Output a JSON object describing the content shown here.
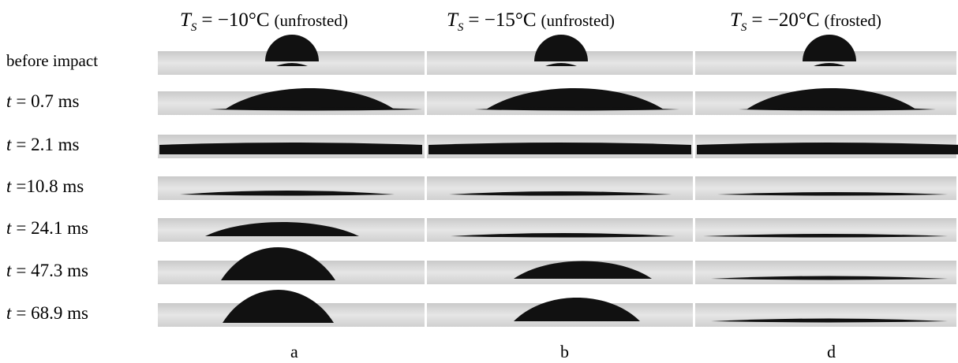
{
  "columns": [
    {
      "symbol": "T",
      "subscript": "S",
      "value": "= −10°C",
      "note": "(unfrosted)",
      "letter": "a"
    },
    {
      "symbol": "T",
      "subscript": "S",
      "value": "= −15°C",
      "note": "(unfrosted)",
      "letter": "b"
    },
    {
      "symbol": "T",
      "subscript": "S",
      "value": "= −20°C",
      "note": "(frosted)",
      "letter": "d"
    }
  ],
  "rows": [
    {
      "label": "before impact"
    },
    {
      "var": "t",
      "label": "= 0.7 ms"
    },
    {
      "var": "t",
      "label": "= 2.1 ms"
    },
    {
      "var": "t",
      "label": "=10.8 ms"
    },
    {
      "var": "t",
      "label": "= 24.1 ms"
    },
    {
      "var": "t",
      "label": "= 47.3 ms"
    },
    {
      "var": "t",
      "label": "= 68.9 ms"
    }
  ]
}
